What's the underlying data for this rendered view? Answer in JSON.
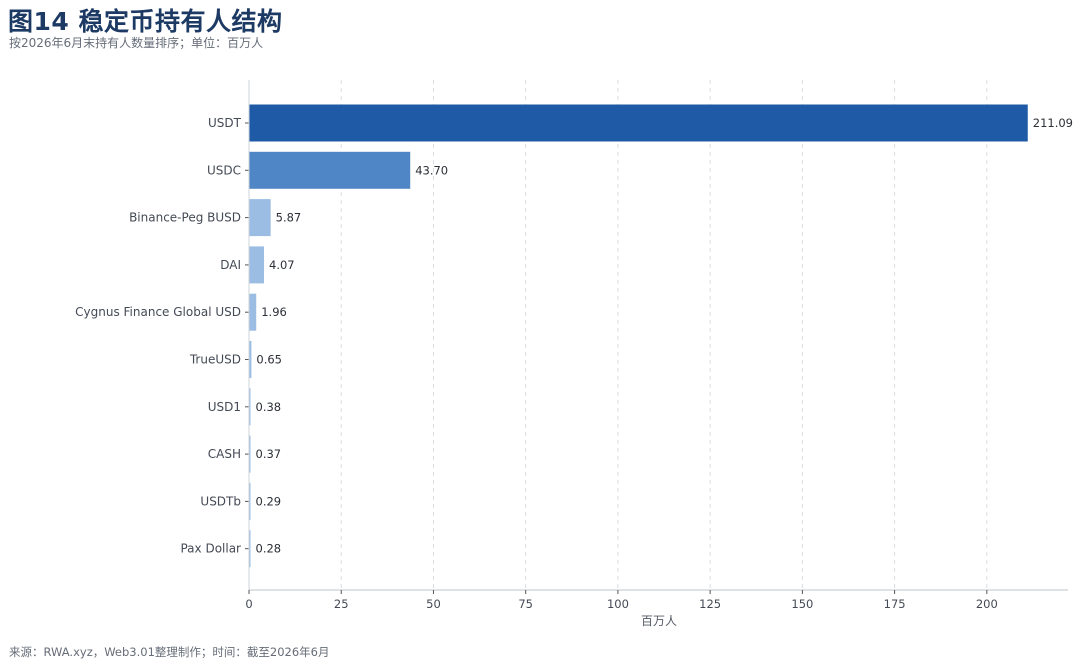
{
  "header": {
    "title": "图14 稳定币持有人结构",
    "subtitle": "按2026年6月末持有人数量排序；单位：百万人"
  },
  "footer": {
    "source": "来源：RWA.xyz，Web3.01整理制作；时间：截至2026年6月"
  },
  "colors": {
    "tier1": "#1f5aa6",
    "tier2": "#4f86c6",
    "tier3": "#9bbde3",
    "grid": "#d9dde3",
    "axis": "#333333"
  },
  "chart_data": {
    "type": "bar",
    "orientation": "horizontal",
    "categories": [
      "USDT",
      "USDC",
      "Binance-Peg BUSD",
      "DAI",
      "Cygnus Finance Global USD",
      "TrueUSD",
      "USD1",
      "CASH",
      "USDTb",
      "Pax Dollar"
    ],
    "values": [
      211.09,
      43.7,
      5.87,
      4.07,
      1.96,
      0.65,
      0.38,
      0.37,
      0.29,
      0.28
    ],
    "value_labels": [
      "211.09",
      "43.70",
      "5.87",
      "4.07",
      "1.96",
      "0.65",
      "0.38",
      "0.37",
      "0.29",
      "0.28"
    ],
    "color_tiers": [
      1,
      2,
      3,
      3,
      3,
      3,
      3,
      3,
      3,
      3
    ],
    "xticks": [
      0,
      25,
      50,
      75,
      100,
      125,
      150,
      175,
      200
    ],
    "xtick_labels": [
      "0",
      "25",
      "50",
      "75",
      "100",
      "125",
      "150",
      "175",
      "200"
    ],
    "xlabel": "百万人",
    "xlim": [
      0,
      222
    ],
    "grid": "vertical dashed"
  }
}
